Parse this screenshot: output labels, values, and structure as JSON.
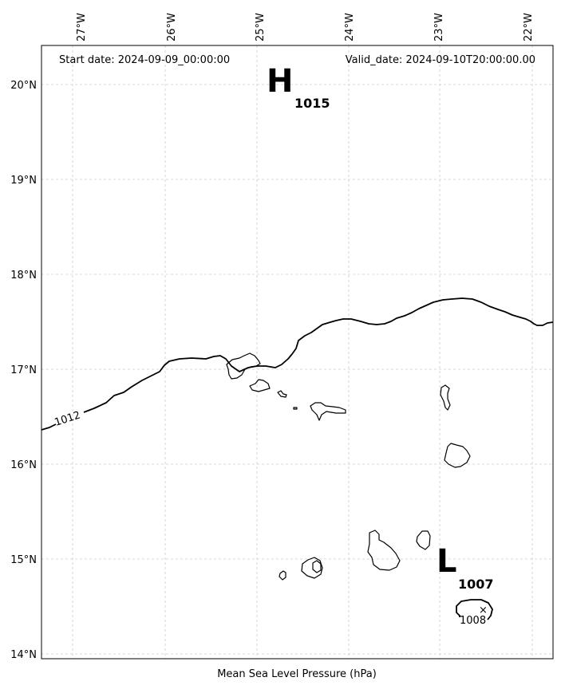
{
  "header": {
    "start_date": "Start date: 2024-09-09_00:00:00",
    "valid_date": "Valid_date: 2024-09-10T20:00:00.00"
  },
  "footer": {
    "caption": "Mean Sea Level Pressure (hPa)"
  },
  "axes": {
    "lon_labels": [
      "27°W",
      "26°W",
      "25°W",
      "24°W",
      "23°W",
      "22°W"
    ],
    "lat_labels": [
      "20°N",
      "19°N",
      "18°N",
      "17°N",
      "16°N",
      "15°N",
      "14°N"
    ]
  },
  "centers": {
    "high": {
      "symbol": "H",
      "value": "1015"
    },
    "low": {
      "symbol": "L",
      "value": "1007"
    }
  },
  "isobars": {
    "label_1012": "1012",
    "label_1008": "1008",
    "marker": "×"
  }
}
